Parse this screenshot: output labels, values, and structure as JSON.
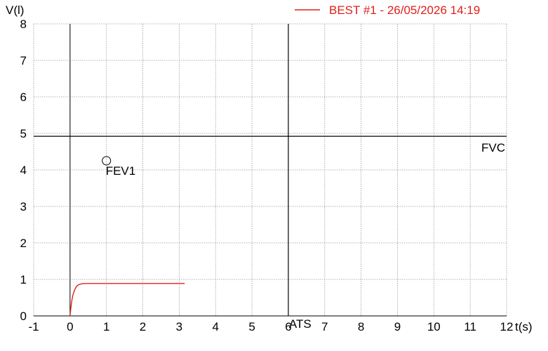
{
  "chart_data": {
    "type": "line",
    "xlabel": "t(s)",
    "ylabel": "V(l)",
    "xlim": [
      -1,
      12
    ],
    "ylim": [
      0,
      8
    ],
    "x_ticks": [
      "-1",
      "0",
      "1",
      "2",
      "3",
      "4",
      "5",
      "6",
      "7",
      "8",
      "9",
      "10",
      "11",
      "12"
    ],
    "y_ticks": [
      "0",
      "1",
      "2",
      "3",
      "4",
      "5",
      "6",
      "7",
      "8"
    ],
    "grid": true,
    "legend_position": "top-right",
    "series": [
      {
        "name": "BEST #1 - 26/05/2026  14:19",
        "color": "#e0201c",
        "x": [
          0,
          0.02,
          0.05,
          0.08,
          0.12,
          0.16,
          0.2,
          0.25,
          0.3,
          0.35,
          0.4,
          0.5,
          0.7,
          1.0,
          1.5,
          2.0,
          2.5,
          3.0,
          3.15
        ],
        "y": [
          0,
          0.2,
          0.42,
          0.58,
          0.7,
          0.78,
          0.83,
          0.86,
          0.875,
          0.882,
          0.886,
          0.888,
          0.889,
          0.889,
          0.889,
          0.889,
          0.889,
          0.889,
          0.889
        ]
      }
    ],
    "reference_lines": [
      {
        "orientation": "horizontal",
        "value": 4.92,
        "label": "FVC",
        "color": "#000000"
      },
      {
        "orientation": "vertical",
        "value": 6,
        "label": "ATS",
        "color": "#000000"
      }
    ],
    "annotations": [
      {
        "label": "FEV1",
        "x": 1.0,
        "y": 4.25,
        "marker": "circle"
      }
    ]
  }
}
